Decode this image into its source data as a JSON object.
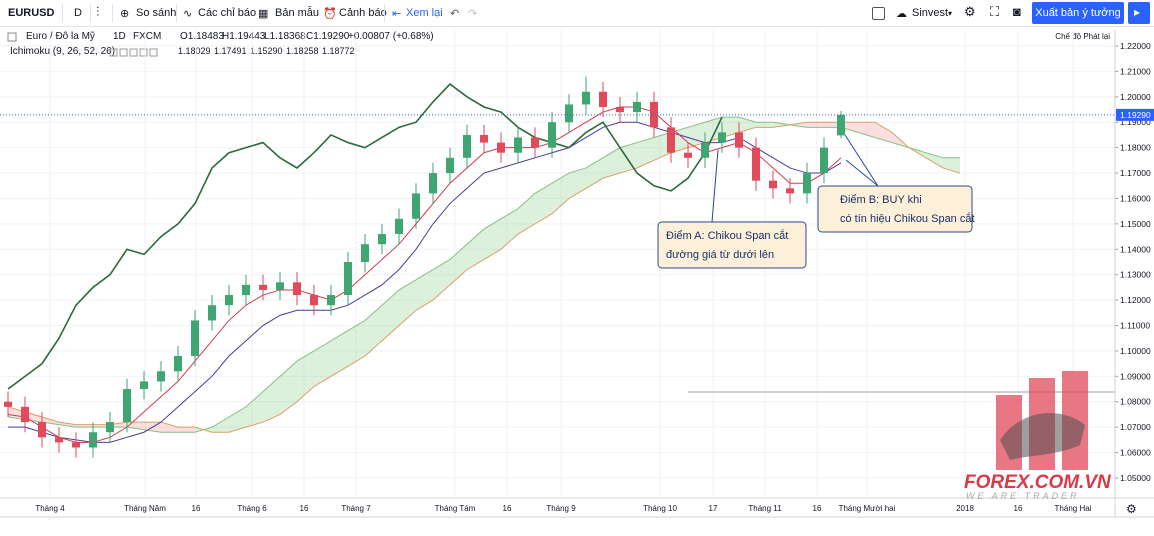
{
  "toolbar": {
    "symbol": "EURUSD",
    "interval": "D",
    "compare": "So sánh",
    "indicators": "Các chỉ báo",
    "templates": "Bản mẫu",
    "alerts": "Cảnh báo",
    "replay": "Xem lại",
    "account": "Sinvest",
    "publish": "Xuất bản ý tưởng"
  },
  "legend": {
    "symbol_name": "Euro / Đô la Mỹ",
    "interval": "1D",
    "exchange": "FXCM",
    "open": "O1.18483",
    "high": "H1.19443",
    "low": "L1.18368",
    "close": "C1.19290",
    "change": "+0.00807 (+0.68%)",
    "indicator": "Ichimoku (9, 26, 52, 26)",
    "indicator_values": [
      "1.18029",
      "1.17491",
      "1.15290",
      "1.18258",
      "1.18772"
    ]
  },
  "replay_mode": "Chế độ Phát lại",
  "watermark": {
    "brand": "FOREX.COM.VN",
    "slogan": "WE ARE TRADER"
  },
  "chart_data": {
    "type": "candlestick",
    "up_color": "#3fa672",
    "down_color": "#e04a5a",
    "open": [
      1.08,
      1.078,
      1.072,
      1.066,
      1.064,
      1.062,
      1.068,
      1.072,
      1.085,
      1.088,
      1.092,
      1.098,
      1.112,
      1.118,
      1.122,
      1.126,
      1.124,
      1.127,
      1.122,
      1.118,
      1.122,
      1.135,
      1.142,
      1.146,
      1.152,
      1.162,
      1.17,
      1.176,
      1.185,
      1.182,
      1.178,
      1.184,
      1.18,
      1.19,
      1.197,
      1.202,
      1.196,
      1.194,
      1.198,
      1.188,
      1.178,
      1.176,
      1.182,
      1.186,
      1.18,
      1.167,
      1.164,
      1.162,
      1.17,
      1.18483
    ],
    "high": [
      1.084,
      1.082,
      1.076,
      1.07,
      1.068,
      1.072,
      1.076,
      1.089,
      1.092,
      1.096,
      1.102,
      1.116,
      1.122,
      1.126,
      1.13,
      1.13,
      1.131,
      1.131,
      1.126,
      1.126,
      1.139,
      1.146,
      1.15,
      1.156,
      1.166,
      1.174,
      1.18,
      1.189,
      1.189,
      1.186,
      1.188,
      1.188,
      1.194,
      1.201,
      1.208,
      1.206,
      1.2,
      1.202,
      1.202,
      1.192,
      1.182,
      1.186,
      1.19,
      1.19,
      1.184,
      1.171,
      1.168,
      1.174,
      1.184,
      1.19443
    ],
    "low": [
      1.074,
      1.068,
      1.062,
      1.06,
      1.058,
      1.058,
      1.064,
      1.068,
      1.081,
      1.084,
      1.088,
      1.094,
      1.108,
      1.114,
      1.118,
      1.12,
      1.12,
      1.118,
      1.114,
      1.114,
      1.118,
      1.131,
      1.138,
      1.142,
      1.148,
      1.158,
      1.166,
      1.172,
      1.178,
      1.174,
      1.174,
      1.176,
      1.176,
      1.186,
      1.193,
      1.192,
      1.19,
      1.19,
      1.184,
      1.174,
      1.172,
      1.172,
      1.178,
      1.176,
      1.163,
      1.16,
      1.158,
      1.158,
      1.166,
      1.18368
    ],
    "close": [
      1.078,
      1.072,
      1.066,
      1.064,
      1.062,
      1.068,
      1.072,
      1.085,
      1.088,
      1.092,
      1.098,
      1.112,
      1.118,
      1.122,
      1.126,
      1.124,
      1.127,
      1.122,
      1.118,
      1.122,
      1.135,
      1.142,
      1.146,
      1.152,
      1.162,
      1.17,
      1.176,
      1.185,
      1.182,
      1.178,
      1.184,
      1.18,
      1.19,
      1.197,
      1.202,
      1.196,
      1.194,
      1.198,
      1.188,
      1.178,
      1.176,
      1.182,
      1.186,
      1.18,
      1.167,
      1.164,
      1.162,
      1.17,
      1.18,
      1.1929
    ],
    "ichimoku": {
      "tenkan": {
        "color": "#d23a4f",
        "values": [
          1.075,
          1.074,
          1.07,
          1.066,
          1.064,
          1.064,
          1.066,
          1.07,
          1.076,
          1.082,
          1.088,
          1.096,
          1.104,
          1.112,
          1.118,
          1.122,
          1.124,
          1.124,
          1.122,
          1.12,
          1.124,
          1.13,
          1.136,
          1.142,
          1.15,
          1.158,
          1.166,
          1.172,
          1.178,
          1.18,
          1.18,
          1.18,
          1.182,
          1.186,
          1.19,
          1.194,
          1.196,
          1.196,
          1.194,
          1.188,
          1.182,
          1.178,
          1.18,
          1.182,
          1.178,
          1.172,
          1.166,
          1.166,
          1.17,
          1.176
        ]
      },
      "kijun": {
        "color": "#4b3a9a",
        "values": [
          1.07,
          1.07,
          1.068,
          1.066,
          1.065,
          1.064,
          1.064,
          1.066,
          1.068,
          1.072,
          1.078,
          1.084,
          1.09,
          1.098,
          1.104,
          1.11,
          1.114,
          1.116,
          1.116,
          1.116,
          1.118,
          1.122,
          1.126,
          1.132,
          1.14,
          1.15,
          1.158,
          1.164,
          1.17,
          1.172,
          1.174,
          1.176,
          1.178,
          1.18,
          1.184,
          1.188,
          1.19,
          1.19,
          1.188,
          1.186,
          1.184,
          1.182,
          1.182,
          1.184,
          1.18,
          1.176,
          1.172,
          1.17,
          1.17,
          1.174
        ]
      },
      "chikou": {
        "color": "#2d6a3a",
        "values": [
          1.085,
          1.09,
          1.095,
          1.105,
          1.118,
          1.125,
          1.13,
          1.14,
          1.138,
          1.145,
          1.15,
          1.158,
          1.172,
          1.178,
          1.18,
          1.182,
          1.176,
          1.172,
          1.178,
          1.185,
          1.182,
          1.18,
          1.184,
          1.188,
          1.19,
          1.198,
          1.205,
          1.2,
          1.196,
          1.194,
          1.188,
          1.184,
          1.182,
          1.18,
          1.186,
          1.19,
          1.18,
          1.17,
          1.165,
          1.163,
          1.168,
          1.178,
          1.192
        ]
      },
      "span_a": {
        "color": "#86c086",
        "values": [
          1.074,
          1.073,
          1.072,
          1.071,
          1.07,
          1.07,
          1.07,
          1.07,
          1.069,
          1.068,
          1.068,
          1.068,
          1.07,
          1.074,
          1.078,
          1.084,
          1.09,
          1.096,
          1.1,
          1.104,
          1.108,
          1.112,
          1.118,
          1.124,
          1.128,
          1.132,
          1.136,
          1.142,
          1.148,
          1.152,
          1.156,
          1.162,
          1.166,
          1.17,
          1.172,
          1.176,
          1.18,
          1.182,
          1.184,
          1.186,
          1.188,
          1.19,
          1.192,
          1.192,
          1.19,
          1.19,
          1.189,
          1.188,
          1.188,
          1.188,
          1.186,
          1.184,
          1.182,
          1.18,
          1.178,
          1.176,
          1.176
        ]
      },
      "span_b": {
        "color": "#d9a066",
        "values": [
          1.078,
          1.076,
          1.074,
          1.072,
          1.071,
          1.071,
          1.071,
          1.072,
          1.072,
          1.072,
          1.07,
          1.07,
          1.068,
          1.068,
          1.07,
          1.072,
          1.075,
          1.08,
          1.086,
          1.09,
          1.094,
          1.098,
          1.104,
          1.11,
          1.116,
          1.12,
          1.126,
          1.132,
          1.136,
          1.14,
          1.146,
          1.15,
          1.154,
          1.16,
          1.164,
          1.168,
          1.17,
          1.172,
          1.175,
          1.178,
          1.18,
          1.182,
          1.184,
          1.186,
          1.188,
          1.188,
          1.189,
          1.19,
          1.19,
          1.19,
          1.19,
          1.19,
          1.186,
          1.18,
          1.176,
          1.172,
          1.17
        ]
      },
      "cloud_up_color": "rgba(130,200,130,0.28)",
      "cloud_down_color": "rgba(240,140,140,0.28)"
    },
    "ylim": [
      1.0433,
      1.2263
    ],
    "yticks": [
      {
        "value": 1.22,
        "label": "1.22000"
      },
      {
        "value": 1.21,
        "label": "1.21000"
      },
      {
        "value": 1.2,
        "label": "1.20000"
      },
      {
        "value": 1.19,
        "label": "1.19000"
      },
      {
        "value": 1.18,
        "label": "1.18000"
      },
      {
        "value": 1.17,
        "label": "1.17000"
      },
      {
        "value": 1.16,
        "label": "1.16000"
      },
      {
        "value": 1.15,
        "label": "1.15000"
      },
      {
        "value": 1.14,
        "label": "1.14000"
      },
      {
        "value": 1.13,
        "label": "1.13000"
      },
      {
        "value": 1.12,
        "label": "1.12000"
      },
      {
        "value": 1.11,
        "label": "1.11000"
      },
      {
        "value": 1.1,
        "label": "1.10000"
      },
      {
        "value": 1.09,
        "label": "1.09000"
      },
      {
        "value": 1.08,
        "label": "1.08000"
      },
      {
        "value": 1.07,
        "label": "1.07000"
      },
      {
        "value": 1.06,
        "label": "1.06000"
      },
      {
        "value": 1.05,
        "label": "1.05000"
      }
    ],
    "xticks": [
      "Tháng 4",
      "Tháng Năm",
      16,
      "Tháng 6",
      16,
      "Tháng 7",
      "Tháng Tám",
      16,
      "Tháng 9",
      "Tháng 10",
      17,
      "Tháng 11",
      16,
      "Tháng Mười hai",
      2018,
      16,
      "Tháng Hai"
    ],
    "grid": true,
    "price_line": {
      "value": 1.1929,
      "label": "1.19290",
      "color": "#2962ff"
    },
    "annotations": [
      {
        "lines": [
          "Điểm A: Chikou Span cắt",
          "đường giá từ dưới lên"
        ]
      },
      {
        "lines": [
          "Điểm B: BUY khi",
          "có tín hiệu Chikou Span cắt"
        ]
      }
    ]
  }
}
